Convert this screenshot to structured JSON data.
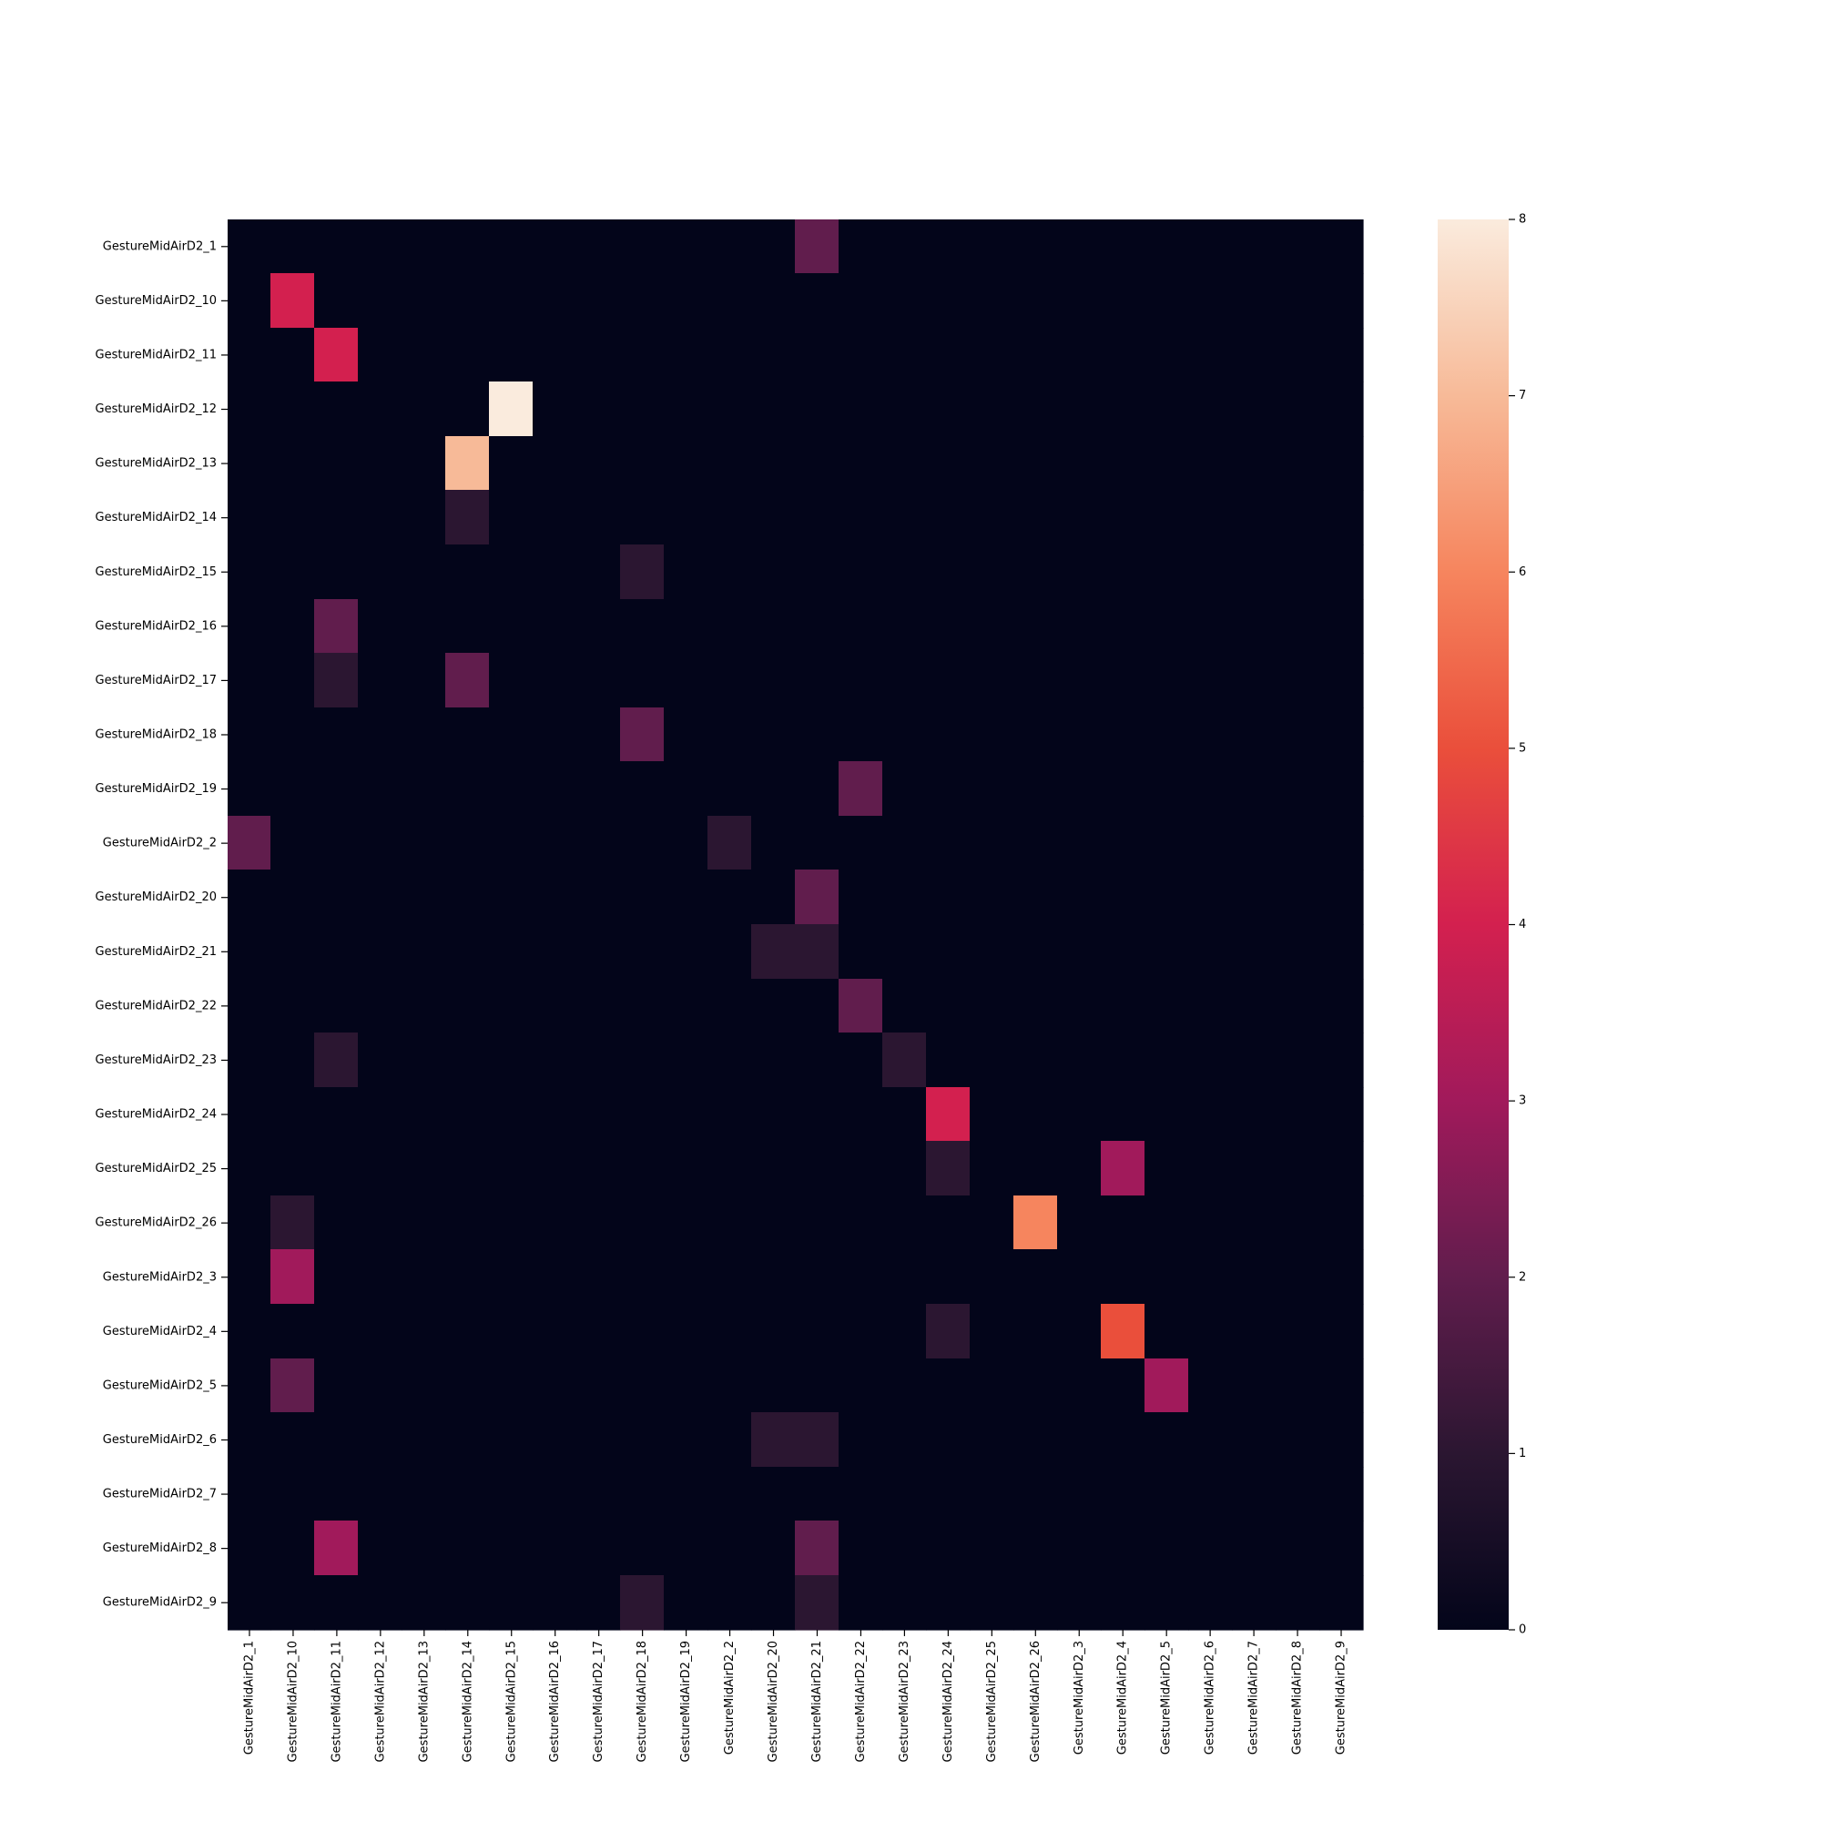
{
  "chart_data": {
    "type": "heatmap",
    "title": "",
    "xlabel": "",
    "ylabel": "",
    "rows": [
      "GestureMidAirD2_1",
      "GestureMidAirD2_10",
      "GestureMidAirD2_11",
      "GestureMidAirD2_12",
      "GestureMidAirD2_13",
      "GestureMidAirD2_14",
      "GestureMidAirD2_15",
      "GestureMidAirD2_16",
      "GestureMidAirD2_17",
      "GestureMidAirD2_18",
      "GestureMidAirD2_19",
      "GestureMidAirD2_2",
      "GestureMidAirD2_20",
      "GestureMidAirD2_21",
      "GestureMidAirD2_22",
      "GestureMidAirD2_23",
      "GestureMidAirD2_24",
      "GestureMidAirD2_25",
      "GestureMidAirD2_26",
      "GestureMidAirD2_3",
      "GestureMidAirD2_4",
      "GestureMidAirD2_5",
      "GestureMidAirD2_6",
      "GestureMidAirD2_7",
      "GestureMidAirD2_8",
      "GestureMidAirD2_9"
    ],
    "columns": [
      "GestureMidAirD2_1",
      "GestureMidAirD2_10",
      "GestureMidAirD2_11",
      "GestureMidAirD2_12",
      "GestureMidAirD2_13",
      "GestureMidAirD2_14",
      "GestureMidAirD2_15",
      "GestureMidAirD2_16",
      "GestureMidAirD2_17",
      "GestureMidAirD2_18",
      "GestureMidAirD2_19",
      "GestureMidAirD2_2",
      "GestureMidAirD2_20",
      "GestureMidAirD2_21",
      "GestureMidAirD2_22",
      "GestureMidAirD2_23",
      "GestureMidAirD2_24",
      "GestureMidAirD2_25",
      "GestureMidAirD2_26",
      "GestureMidAirD2_3",
      "GestureMidAirD2_4",
      "GestureMidAirD2_5",
      "GestureMidAirD2_6",
      "GestureMidAirD2_7",
      "GestureMidAirD2_8",
      "GestureMidAirD2_9"
    ],
    "values": [
      [
        0,
        0,
        0,
        0,
        0,
        0,
        0,
        0,
        0,
        0,
        0,
        0,
        0,
        2,
        0,
        0,
        0,
        0,
        0,
        0,
        0,
        0,
        0,
        0,
        0,
        0
      ],
      [
        0,
        4,
        0,
        0,
        0,
        0,
        0,
        0,
        0,
        0,
        0,
        0,
        0,
        0,
        0,
        0,
        0,
        0,
        0,
        0,
        0,
        0,
        0,
        0,
        0,
        0
      ],
      [
        0,
        0,
        4,
        0,
        0,
        0,
        0,
        0,
        0,
        0,
        0,
        0,
        0,
        0,
        0,
        0,
        0,
        0,
        0,
        0,
        0,
        0,
        0,
        0,
        0,
        0
      ],
      [
        0,
        0,
        0,
        0,
        0,
        0,
        8,
        0,
        0,
        0,
        0,
        0,
        0,
        0,
        0,
        0,
        0,
        0,
        0,
        0,
        0,
        0,
        0,
        0,
        0,
        0
      ],
      [
        0,
        0,
        0,
        0,
        0,
        7,
        0,
        0,
        0,
        0,
        0,
        0,
        0,
        0,
        0,
        0,
        0,
        0,
        0,
        0,
        0,
        0,
        0,
        0,
        0,
        0
      ],
      [
        0,
        0,
        0,
        0,
        0,
        1,
        0,
        0,
        0,
        0,
        0,
        0,
        0,
        0,
        0,
        0,
        0,
        0,
        0,
        0,
        0,
        0,
        0,
        0,
        0,
        0
      ],
      [
        0,
        0,
        0,
        0,
        0,
        0,
        0,
        0,
        0,
        1,
        0,
        0,
        0,
        0,
        0,
        0,
        0,
        0,
        0,
        0,
        0,
        0,
        0,
        0,
        0,
        0
      ],
      [
        0,
        0,
        2,
        0,
        0,
        0,
        0,
        0,
        0,
        0,
        0,
        0,
        0,
        0,
        0,
        0,
        0,
        0,
        0,
        0,
        0,
        0,
        0,
        0,
        0,
        0
      ],
      [
        0,
        0,
        1,
        0,
        0,
        2,
        0,
        0,
        0,
        0,
        0,
        0,
        0,
        0,
        0,
        0,
        0,
        0,
        0,
        0,
        0,
        0,
        0,
        0,
        0,
        0
      ],
      [
        0,
        0,
        0,
        0,
        0,
        0,
        0,
        0,
        0,
        2,
        0,
        0,
        0,
        0,
        0,
        0,
        0,
        0,
        0,
        0,
        0,
        0,
        0,
        0,
        0,
        0
      ],
      [
        0,
        0,
        0,
        0,
        0,
        0,
        0,
        0,
        0,
        0,
        0,
        0,
        0,
        0,
        2,
        0,
        0,
        0,
        0,
        0,
        0,
        0,
        0,
        0,
        0,
        0
      ],
      [
        2,
        0,
        0,
        0,
        0,
        0,
        0,
        0,
        0,
        0,
        0,
        1,
        0,
        0,
        0,
        0,
        0,
        0,
        0,
        0,
        0,
        0,
        0,
        0,
        0,
        0
      ],
      [
        0,
        0,
        0,
        0,
        0,
        0,
        0,
        0,
        0,
        0,
        0,
        0,
        0,
        2,
        0,
        0,
        0,
        0,
        0,
        0,
        0,
        0,
        0,
        0,
        0,
        0
      ],
      [
        0,
        0,
        0,
        0,
        0,
        0,
        0,
        0,
        0,
        0,
        0,
        0,
        1,
        1,
        0,
        0,
        0,
        0,
        0,
        0,
        0,
        0,
        0,
        0,
        0,
        0
      ],
      [
        0,
        0,
        0,
        0,
        0,
        0,
        0,
        0,
        0,
        0,
        0,
        0,
        0,
        0,
        2,
        0,
        0,
        0,
        0,
        0,
        0,
        0,
        0,
        0,
        0,
        0
      ],
      [
        0,
        0,
        1,
        0,
        0,
        0,
        0,
        0,
        0,
        0,
        0,
        0,
        0,
        0,
        0,
        1,
        0,
        0,
        0,
        0,
        0,
        0,
        0,
        0,
        0,
        0
      ],
      [
        0,
        0,
        0,
        0,
        0,
        0,
        0,
        0,
        0,
        0,
        0,
        0,
        0,
        0,
        0,
        0,
        4,
        0,
        0,
        0,
        0,
        0,
        0,
        0,
        0,
        0
      ],
      [
        0,
        0,
        0,
        0,
        0,
        0,
        0,
        0,
        0,
        0,
        0,
        0,
        0,
        0,
        0,
        0,
        1,
        0,
        0,
        0,
        3,
        0,
        0,
        0,
        0,
        0
      ],
      [
        0,
        1,
        0,
        0,
        0,
        0,
        0,
        0,
        0,
        0,
        0,
        0,
        0,
        0,
        0,
        0,
        0,
        0,
        6,
        0,
        0,
        0,
        0,
        0,
        0,
        0
      ],
      [
        0,
        3,
        0,
        0,
        0,
        0,
        0,
        0,
        0,
        0,
        0,
        0,
        0,
        0,
        0,
        0,
        0,
        0,
        0,
        0,
        0,
        0,
        0,
        0,
        0,
        0
      ],
      [
        0,
        0,
        0,
        0,
        0,
        0,
        0,
        0,
        0,
        0,
        0,
        0,
        0,
        0,
        0,
        0,
        1,
        0,
        0,
        0,
        5,
        0,
        0,
        0,
        0,
        0
      ],
      [
        0,
        2,
        0,
        0,
        0,
        0,
        0,
        0,
        0,
        0,
        0,
        0,
        0,
        0,
        0,
        0,
        0,
        0,
        0,
        0,
        0,
        3,
        0,
        0,
        0,
        0
      ],
      [
        0,
        0,
        0,
        0,
        0,
        0,
        0,
        0,
        0,
        0,
        0,
        0,
        1,
        1,
        0,
        0,
        0,
        0,
        0,
        0,
        0,
        0,
        0,
        0,
        0,
        0
      ],
      [
        0,
        0,
        0,
        0,
        0,
        0,
        0,
        0,
        0,
        0,
        0,
        0,
        0,
        0,
        0,
        0,
        0,
        0,
        0,
        0,
        0,
        0,
        0,
        0,
        0,
        0
      ],
      [
        0,
        0,
        3,
        0,
        0,
        0,
        0,
        0,
        0,
        0,
        0,
        0,
        0,
        2,
        0,
        0,
        0,
        0,
        0,
        0,
        0,
        0,
        0,
        0,
        0,
        0
      ],
      [
        0,
        0,
        0,
        0,
        0,
        0,
        0,
        0,
        0,
        1,
        0,
        0,
        0,
        1,
        0,
        0,
        0,
        0,
        0,
        0,
        0,
        0,
        0,
        0,
        0,
        0
      ]
    ],
    "colorbar": {
      "vmin": 0,
      "vmax": 8,
      "ticks": [
        "0",
        "1",
        "2",
        "3",
        "4",
        "5",
        "6",
        "7",
        "8"
      ]
    },
    "colormap_stops": [
      "#03051a",
      "#2b1631",
      "#611d4d",
      "#a11a5b",
      "#d3204f",
      "#ea4f3b",
      "#f6855e",
      "#f7ba98",
      "#faebdd"
    ]
  }
}
